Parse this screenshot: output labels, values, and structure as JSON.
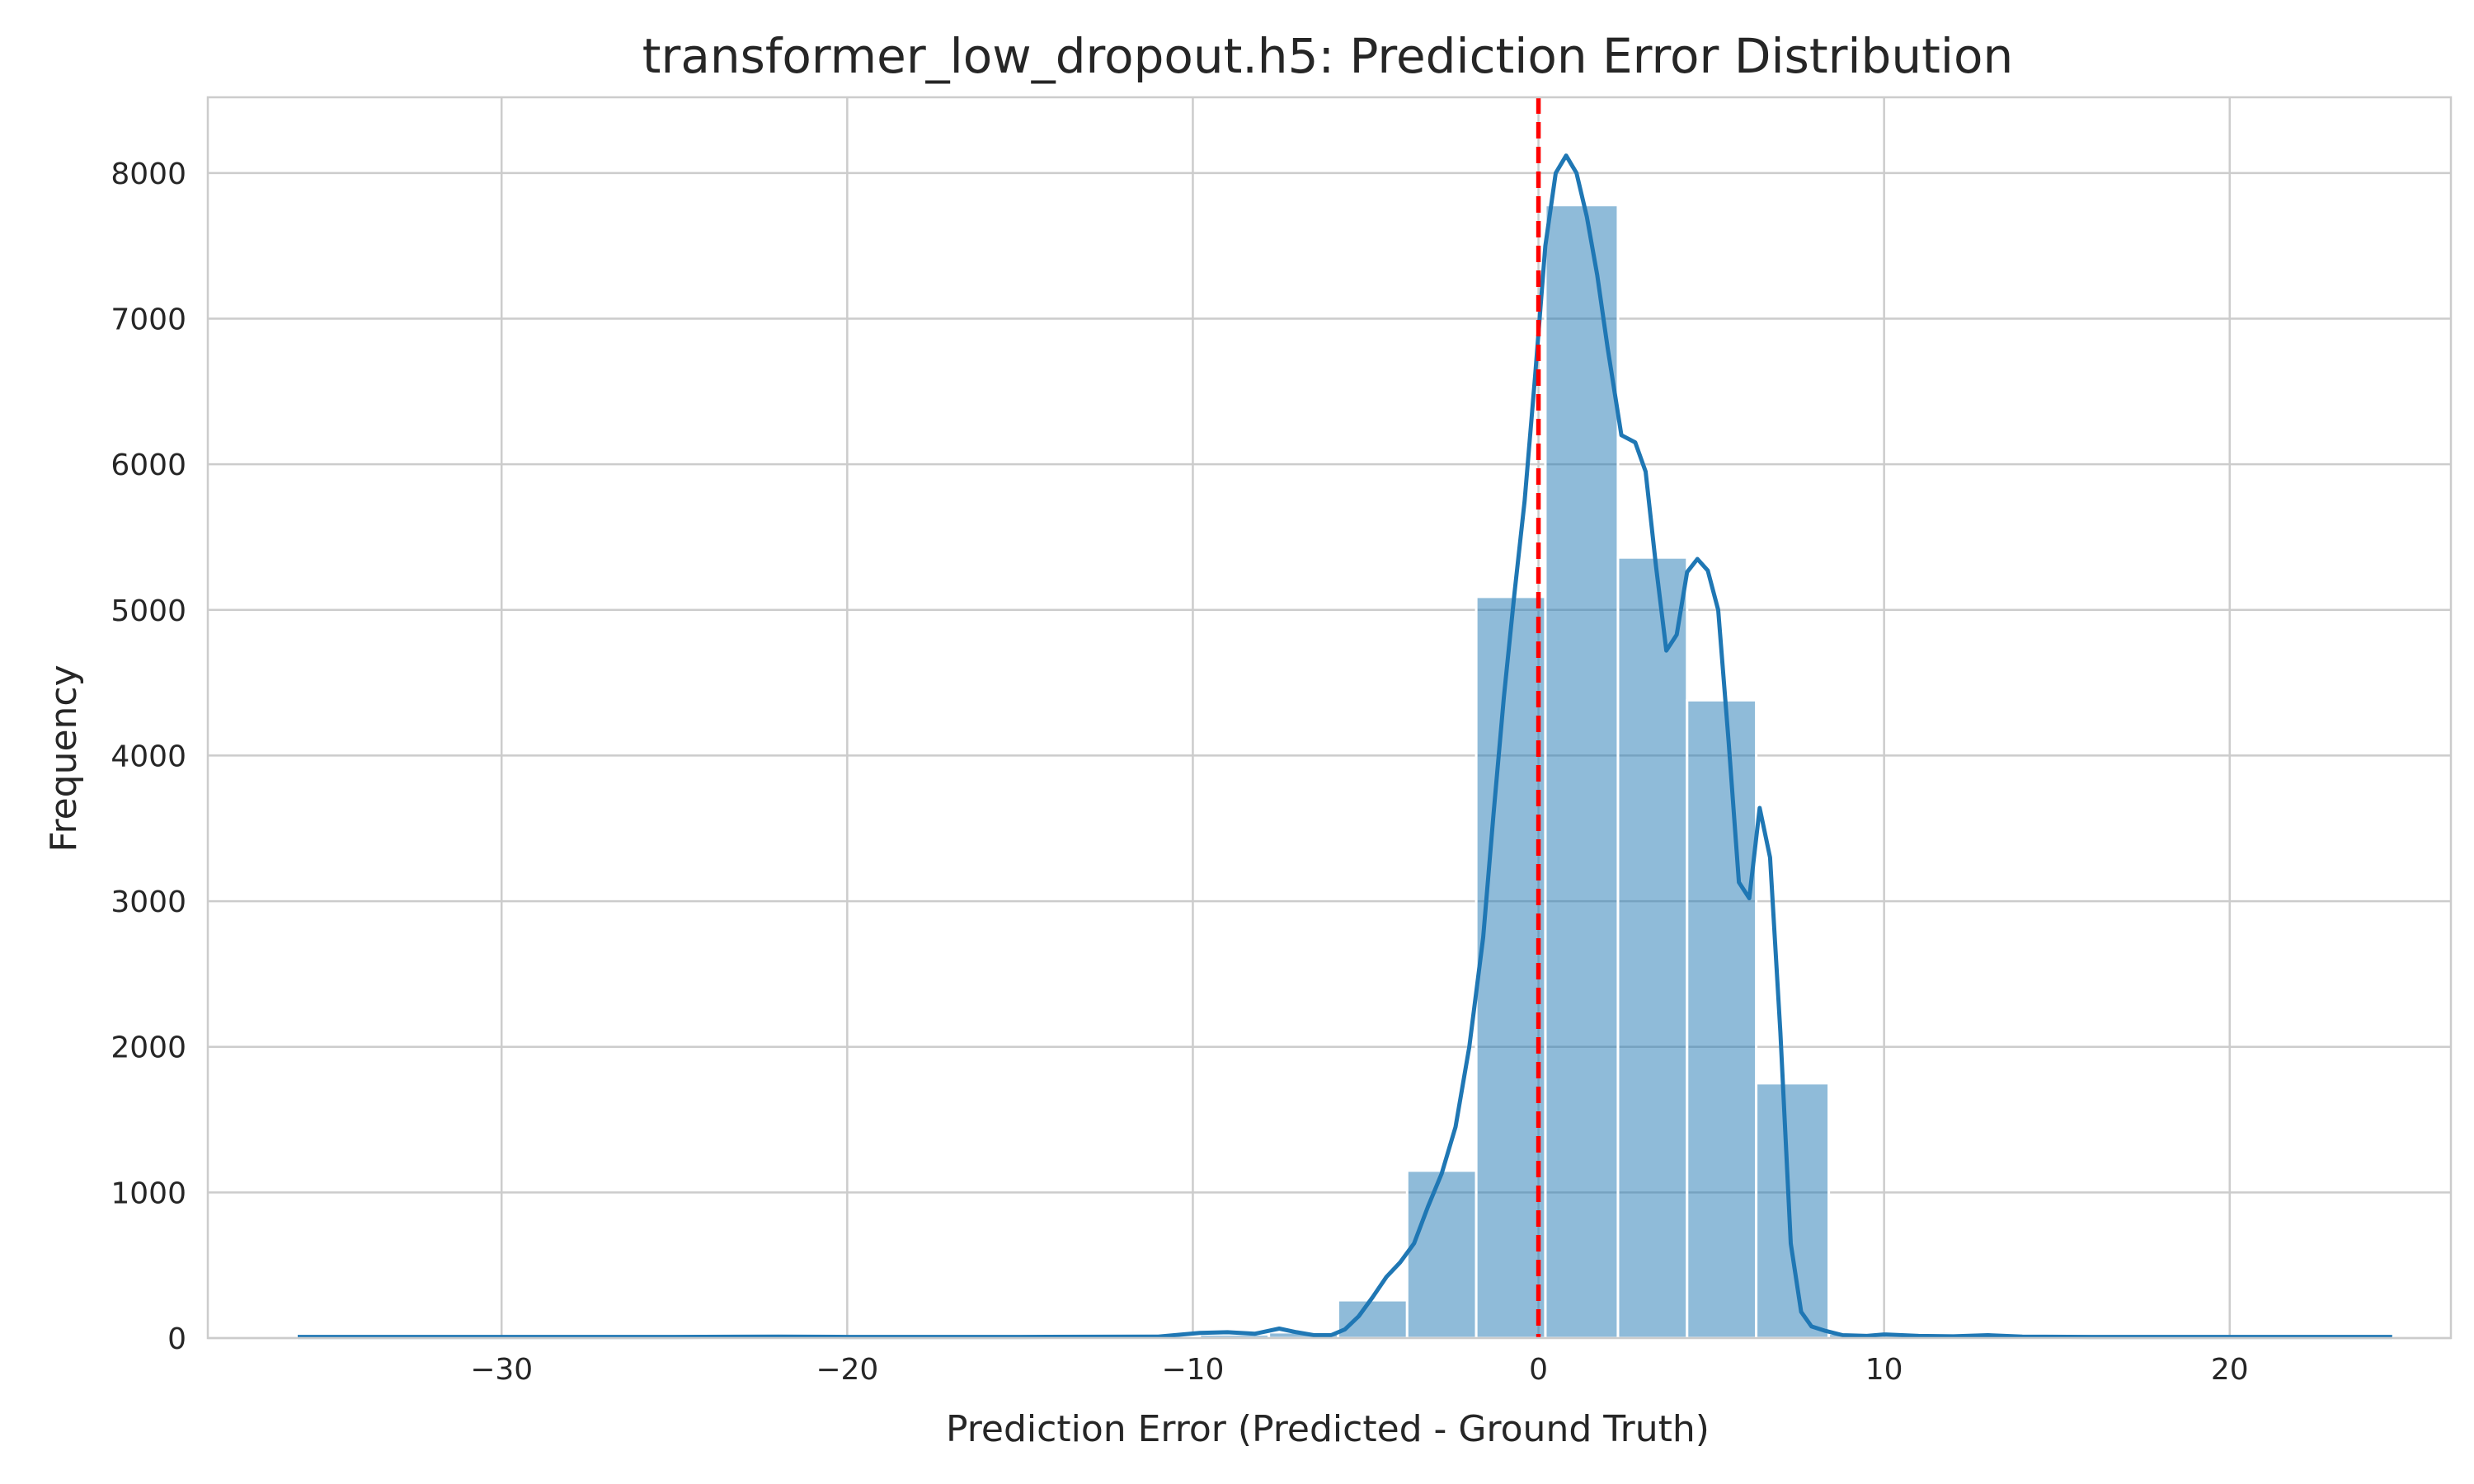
{
  "chart_data": {
    "type": "bar",
    "subtype": "histogram-with-kde",
    "title": "transformer_low_dropout.h5: Prediction Error Distribution",
    "xlabel": "Prediction Error (Predicted - Ground Truth)",
    "ylabel": "Frequency",
    "xlim": [
      -38.5,
      26.4
    ],
    "ylim": [
      0,
      8520
    ],
    "xticks": [
      -30,
      -20,
      -10,
      0,
      10,
      20
    ],
    "xtick_labels": [
      "−30",
      "−20",
      "−10",
      "0",
      "10",
      "20"
    ],
    "yticks": [
      0,
      1000,
      2000,
      3000,
      4000,
      5000,
      6000,
      7000,
      8000
    ],
    "ytick_labels": [
      "0",
      "1000",
      "2000",
      "3000",
      "4000",
      "5000",
      "6000",
      "7000",
      "8000"
    ],
    "grid": true,
    "colors": {
      "bars": "#1f77b4",
      "kde": "#1f77b4",
      "reference_line": "#ff0000",
      "grid": "#cccccc"
    },
    "bins": [
      {
        "x0": -35.9,
        "x1": -33.9,
        "count": 10
      },
      {
        "x0": -33.9,
        "x1": -31.9,
        "count": 3
      },
      {
        "x0": -31.9,
        "x1": -29.9,
        "count": 2
      },
      {
        "x0": -29.9,
        "x1": -27.9,
        "count": 3
      },
      {
        "x0": -27.9,
        "x1": -25.9,
        "count": 2
      },
      {
        "x0": -25.9,
        "x1": -23.9,
        "count": 3
      },
      {
        "x0": -23.9,
        "x1": -21.9,
        "count": 5
      },
      {
        "x0": -21.9,
        "x1": -19.9,
        "count": 4
      },
      {
        "x0": -19.9,
        "x1": -17.9,
        "count": 3
      },
      {
        "x0": -17.9,
        "x1": -15.9,
        "count": 4
      },
      {
        "x0": -15.9,
        "x1": -13.9,
        "count": 4
      },
      {
        "x0": -13.9,
        "x1": -11.9,
        "count": 5
      },
      {
        "x0": -11.9,
        "x1": -9.8,
        "count": 8
      },
      {
        "x0": -9.8,
        "x1": -7.8,
        "count": 25
      },
      {
        "x0": -7.8,
        "x1": -5.8,
        "count": 40
      },
      {
        "x0": -5.8,
        "x1": -3.8,
        "count": 260
      },
      {
        "x0": -3.8,
        "x1": -1.8,
        "count": 1150
      },
      {
        "x0": -1.8,
        "x1": 0.2,
        "count": 5090
      },
      {
        "x0": 0.2,
        "x1": 2.3,
        "count": 7780
      },
      {
        "x0": 2.3,
        "x1": 4.3,
        "count": 5360
      },
      {
        "x0": 4.3,
        "x1": 6.3,
        "count": 4380
      },
      {
        "x0": 6.3,
        "x1": 8.4,
        "count": 1750
      },
      {
        "x0": 8.4,
        "x1": 10.4,
        "count": 30
      },
      {
        "x0": 10.4,
        "x1": 12.4,
        "count": 10
      },
      {
        "x0": 12.4,
        "x1": 14.4,
        "count": 12
      },
      {
        "x0": 14.4,
        "x1": 16.4,
        "count": 6
      },
      {
        "x0": 16.4,
        "x1": 18.4,
        "count": 5
      },
      {
        "x0": 18.4,
        "x1": 20.4,
        "count": 3
      },
      {
        "x0": 20.4,
        "x1": 22.5,
        "count": 5
      },
      {
        "x0": 22.5,
        "x1": 24.7,
        "count": 3
      }
    ],
    "kde": {
      "x": [
        -35.9,
        -30,
        -25,
        -22,
        -20,
        -15,
        -11,
        -9.8,
        -9.0,
        -8.2,
        -7.5,
        -7.0,
        -6.5,
        -6.0,
        -5.6,
        -5.2,
        -4.8,
        -4.4,
        -4.0,
        -3.6,
        -3.2,
        -2.8,
        -2.4,
        -2.0,
        -1.6,
        -1.3,
        -1.0,
        -0.7,
        -0.4,
        -0.1,
        0.2,
        0.5,
        0.8,
        1.1,
        1.4,
        1.7,
        2.0,
        2.4,
        2.8,
        3.1,
        3.4,
        3.7,
        4.0,
        4.3,
        4.6,
        4.9,
        5.2,
        5.5,
        5.8,
        6.1,
        6.4,
        6.7,
        7.0,
        7.3,
        7.6,
        7.9,
        8.3,
        8.8,
        9.5,
        10.0,
        11.0,
        12.0,
        13.0,
        14.0,
        16.0,
        18.0,
        20.0,
        22.0,
        24.7
      ],
      "y": [
        8,
        8,
        8,
        10,
        8,
        8,
        10,
        35,
        40,
        30,
        65,
        40,
        20,
        20,
        60,
        150,
        280,
        420,
        520,
        650,
        900,
        1130,
        1450,
        2000,
        2750,
        3600,
        4400,
        5100,
        5750,
        6600,
        7500,
        8000,
        8120,
        8000,
        7700,
        7300,
        6800,
        6200,
        6150,
        5950,
        5300,
        4720,
        4830,
        5260,
        5350,
        5270,
        5000,
        4100,
        3130,
        3020,
        3640,
        3300,
        2100,
        650,
        180,
        80,
        50,
        20,
        15,
        25,
        15,
        12,
        20,
        10,
        8,
        8,
        8,
        8,
        8
      ]
    },
    "reference_line": {
      "x": 0,
      "style": "dashed"
    }
  }
}
